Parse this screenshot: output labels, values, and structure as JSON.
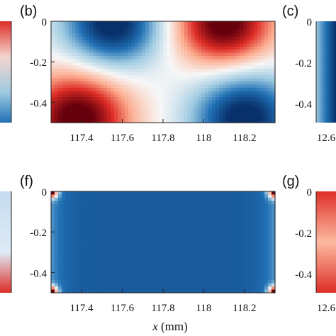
{
  "chart_data": [
    {
      "panel": "b",
      "type": "heatmap",
      "label": "(b)",
      "x_ticks": [
        117.4,
        117.6,
        117.8,
        118,
        118.2
      ],
      "y_ticks": [
        0,
        -0.2,
        -0.4
      ],
      "xlim": [
        117.25,
        118.35
      ],
      "ylim": [
        -0.5,
        0
      ],
      "colormap": [
        "#08306b",
        "#2171b5",
        "#9ecae1",
        "#f7f7f7",
        "#fcae91",
        "#de2d26",
        "#67000d"
      ],
      "features": [
        {
          "x": 117.55,
          "y": -0.01,
          "value": -1.0,
          "spread": 0.15
        },
        {
          "x": 118.1,
          "y": -0.01,
          "value": 1.0,
          "spread": 0.15
        },
        {
          "x": 117.38,
          "y": -0.48,
          "value": 1.0,
          "spread": 0.16
        },
        {
          "x": 118.2,
          "y": -0.48,
          "value": -1.0,
          "spread": 0.16
        }
      ]
    },
    {
      "panel": "f",
      "type": "heatmap",
      "label": "(f)",
      "x_ticks": [
        117.4,
        117.6,
        117.8,
        118,
        118.2
      ],
      "y_ticks": [
        0,
        -0.2,
        -0.4
      ],
      "xlim": [
        117.25,
        118.35
      ],
      "ylim": [
        -0.5,
        0
      ],
      "xlabel": "x (mm)",
      "colormap": [
        "#08306b",
        "#2171b5",
        "#9ecae1",
        "#f7f7f7",
        "#fcae91",
        "#de2d26",
        "#67000d"
      ],
      "features": [
        {
          "x": 117.25,
          "y": 0,
          "value": 1.0,
          "spread": 0.04
        },
        {
          "x": 118.35,
          "y": 0,
          "value": 1.0,
          "spread": 0.04
        },
        {
          "x": 117.25,
          "y": -0.5,
          "value": 1.0,
          "spread": 0.04
        },
        {
          "x": 118.35,
          "y": -0.5,
          "value": 1.0,
          "spread": 0.04
        }
      ]
    }
  ],
  "side_panels": [
    {
      "label": "(c)",
      "x_ticks": [],
      "y_ticks": [
        0,
        -0.2,
        -0.4
      ]
    },
    {
      "label": "(g)",
      "x_ticks": [
        12.6
      ],
      "y_ticks": [
        0,
        -0.2,
        -0.4
      ]
    }
  ],
  "top_right_tick": "12.6",
  "xlabel": {
    "var": "x",
    "unit": " (mm)"
  }
}
